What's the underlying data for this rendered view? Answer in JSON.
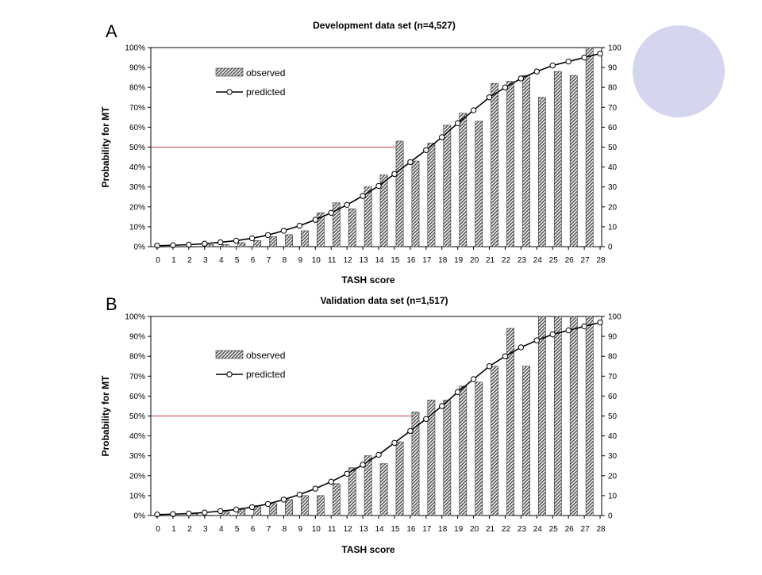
{
  "decor": {
    "circle_color": "#d4d6ee"
  },
  "chart_data": [
    {
      "type": "bar+line",
      "panel_label": "A",
      "title": "Development data set (n=4,527)",
      "xlabel": "TASH score",
      "ylabel": "Probability for MT",
      "x": [
        0,
        1,
        2,
        3,
        4,
        5,
        6,
        7,
        8,
        9,
        10,
        11,
        12,
        13,
        14,
        15,
        16,
        17,
        18,
        19,
        20,
        21,
        22,
        23,
        24,
        25,
        26,
        27,
        28
      ],
      "ylim": [
        0,
        100
      ],
      "y_ticks_left": [
        "0%",
        "10%",
        "20%",
        "30%",
        "40%",
        "50%",
        "60%",
        "70%",
        "80%",
        "90%",
        "100%"
      ],
      "y_ticks_right": [
        "0",
        "10",
        "20",
        "30",
        "40",
        "50",
        "60",
        "70",
        "80",
        "90",
        "100"
      ],
      "reference_line": 50,
      "legend": {
        "placement": "top-left",
        "observed": "observed",
        "predicted": "predicted"
      },
      "series": [
        {
          "name": "observed",
          "kind": "bar",
          "values": [
            0,
            0,
            0,
            1,
            1,
            2,
            3,
            5,
            6,
            8,
            17,
            22,
            19,
            30,
            36,
            53,
            43,
            52,
            61,
            67,
            63,
            82,
            83,
            86,
            75,
            88,
            86,
            100,
            null
          ]
        },
        {
          "name": "predicted",
          "kind": "line",
          "values": [
            0.5,
            0.7,
            1,
            1.5,
            2.2,
            3,
            4.2,
            5.8,
            8,
            10.5,
            13.5,
            17,
            21,
            25.5,
            30.5,
            36.5,
            42.5,
            48.5,
            55,
            62,
            68.5,
            75,
            80,
            84.5,
            88,
            91,
            93,
            95,
            97
          ]
        }
      ]
    },
    {
      "type": "bar+line",
      "panel_label": "B",
      "title": "Validation data set (n=1,517)",
      "xlabel": "TASH score",
      "ylabel": "Probability for MT",
      "x": [
        0,
        1,
        2,
        3,
        4,
        5,
        6,
        7,
        8,
        9,
        10,
        11,
        12,
        13,
        14,
        15,
        16,
        17,
        18,
        19,
        20,
        21,
        22,
        23,
        24,
        25,
        26,
        27,
        28
      ],
      "ylim": [
        0,
        100
      ],
      "y_ticks_left": [
        "0%",
        "10%",
        "20%",
        "30%",
        "40%",
        "50%",
        "60%",
        "70%",
        "80%",
        "90%",
        "100%"
      ],
      "y_ticks_right": [
        "0",
        "10",
        "20",
        "30",
        "40",
        "50",
        "60",
        "70",
        "80",
        "90",
        "100"
      ],
      "reference_line": 50,
      "legend": {
        "placement": "top-left",
        "observed": "observed",
        "predicted": "predicted"
      },
      "series": [
        {
          "name": "observed",
          "kind": "bar",
          "values": [
            0,
            0,
            1,
            0,
            2,
            3,
            5,
            6,
            8,
            10,
            10,
            16,
            24,
            30,
            26,
            37,
            52,
            58,
            58,
            65,
            67,
            75,
            94,
            75,
            100,
            100,
            100,
            100,
            null
          ]
        },
        {
          "name": "predicted",
          "kind": "line",
          "values": [
            0.5,
            0.7,
            1,
            1.5,
            2.2,
            3,
            4.2,
            5.8,
            8,
            10.5,
            13.5,
            17,
            21,
            25.5,
            30.5,
            36.5,
            42.5,
            48.5,
            55,
            62,
            68.5,
            75,
            80,
            84.5,
            88,
            91,
            93,
            95,
            97
          ]
        }
      ]
    }
  ]
}
